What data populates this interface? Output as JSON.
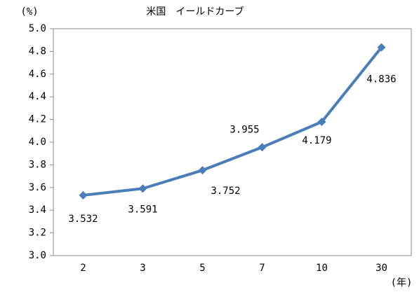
{
  "chart_data": {
    "type": "line",
    "title": "米国　イールドカーブ",
    "y_label": "(%)",
    "x_label": "(年)",
    "categories": [
      "2",
      "3",
      "5",
      "7",
      "10",
      "30"
    ],
    "series": [
      {
        "name": "米国",
        "color": "#4a7ebb",
        "values": [
          3.532,
          3.591,
          3.752,
          3.955,
          4.179,
          4.836
        ]
      }
    ],
    "ylim": [
      3.0,
      5.0
    ],
    "yticks": [
      {
        "value": 3.0,
        "label": "3.0"
      },
      {
        "value": 3.2,
        "label": "3.2"
      },
      {
        "value": 3.4,
        "label": "3.4"
      },
      {
        "value": 3.6,
        "label": "3.6"
      },
      {
        "value": 3.8,
        "label": "3.8"
      },
      {
        "value": 4.0,
        "label": "4.0"
      },
      {
        "value": 4.2,
        "label": "4.2"
      },
      {
        "value": 4.4,
        "label": "4.4"
      },
      {
        "value": 4.6,
        "label": "4.6"
      },
      {
        "value": 4.8,
        "label": "4.8"
      },
      {
        "value": 5.0,
        "label": "5.0"
      }
    ],
    "grid": false
  }
}
